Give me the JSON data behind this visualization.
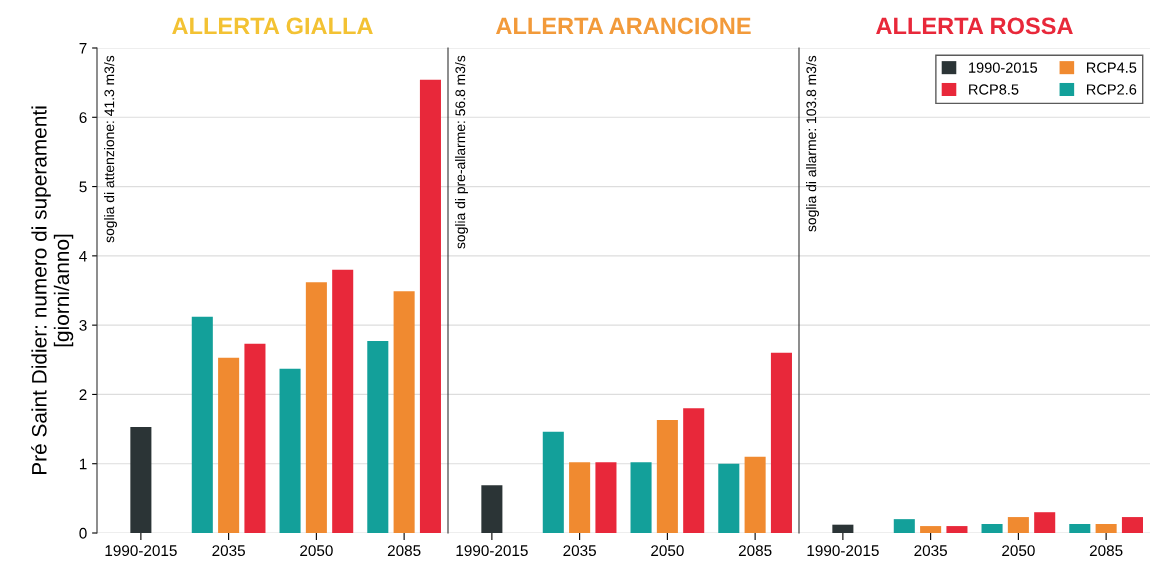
{
  "chart_data": [
    {
      "type": "bar",
      "title": "ALLERTA GIALLA",
      "ylabel": "Pré Saint Didier: numero di superamenti\n[giorni/anno]",
      "categories": [
        "1990-2015",
        "2035",
        "2050",
        "2085"
      ],
      "ylim": [
        0,
        7
      ],
      "yticks": [
        0,
        1,
        2,
        3,
        4,
        5,
        6,
        7
      ],
      "grid": "y",
      "legend": false,
      "annotations": [
        "soglia di attenzione: 41.3 m3/s"
      ],
      "series": [
        {
          "color": "#2b3436",
          "values": [
            1.53,
            null,
            null,
            null
          ]
        },
        {
          "color": "#13a09a",
          "values": [
            null,
            3.12,
            2.37,
            2.77
          ]
        },
        {
          "color": "#f08a30",
          "values": [
            null,
            2.53,
            3.62,
            3.49
          ]
        },
        {
          "color": "#e8283a",
          "values": [
            null,
            2.73,
            3.8,
            6.54
          ]
        }
      ]
    },
    {
      "type": "bar",
      "title": "ALLERTA ARANCIONE",
      "categories": [
        "1990-2015",
        "2035",
        "2050",
        "2085"
      ],
      "ylim": [
        0,
        7
      ],
      "yticks": [
        0,
        1,
        2,
        3,
        4,
        5,
        6,
        7
      ],
      "tick_labels": "x",
      "grid": "y",
      "legend": false,
      "annotations": [
        "soglia di pre-allarme: 56.8 m3/s"
      ],
      "series": [
        {
          "color": "#2b3436",
          "values": [
            0.69,
            null,
            null,
            null
          ]
        },
        {
          "color": "#13a09a",
          "values": [
            null,
            1.46,
            1.02,
            1.0
          ]
        },
        {
          "color": "#f08a30",
          "values": [
            null,
            1.02,
            1.63,
            1.1
          ]
        },
        {
          "color": "#e8283a",
          "values": [
            null,
            1.02,
            1.8,
            2.6
          ]
        }
      ]
    },
    {
      "type": "bar",
      "title": "ALLERTA ROSSA",
      "categories": [
        "1990-2015",
        "2035",
        "2050",
        "2085"
      ],
      "ylim": [
        0,
        7
      ],
      "yticks": [
        0,
        1,
        2,
        3,
        4,
        5,
        6,
        7
      ],
      "tick_labels": "x",
      "grid": "y",
      "legend": "top right",
      "annotations": [
        "soglia di allarme: 103.8 m3/s"
      ],
      "series": [
        {
          "name": "1990-2015",
          "color": "#2b3436",
          "values": [
            0.12,
            null,
            null,
            null
          ]
        },
        {
          "name": "RCP2.6",
          "color": "#13a09a",
          "values": [
            null,
            0.2,
            0.13,
            0.13
          ]
        },
        {
          "name": "RCP4.5",
          "color": "#f08a30",
          "values": [
            null,
            0.1,
            0.23,
            0.13
          ]
        },
        {
          "name": "RCP8.5",
          "color": "#e8283a",
          "values": [
            null,
            0.1,
            0.3,
            0.23
          ]
        }
      ]
    }
  ]
}
